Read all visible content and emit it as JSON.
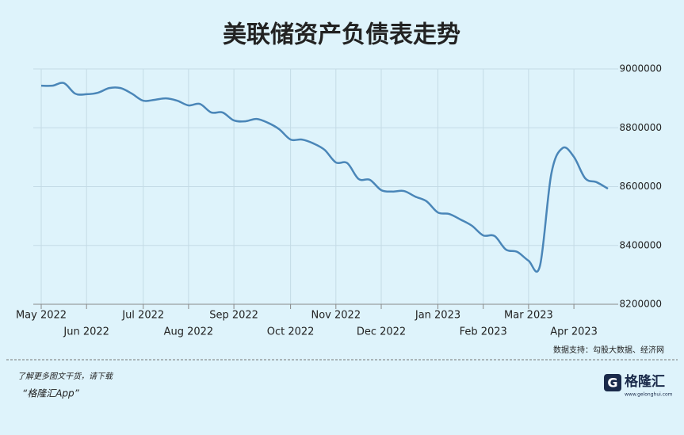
{
  "chart_data": {
    "type": "line",
    "title": "美联储资产负债表走势",
    "categories": [
      "May 2022",
      null,
      null,
      null,
      "Jun 2022",
      null,
      null,
      null,
      null,
      "Jul 2022",
      null,
      null,
      null,
      "Aug 2022",
      null,
      null,
      null,
      "Sep 2022",
      null,
      null,
      null,
      null,
      "Oct 2022",
      null,
      null,
      null,
      "Nov 2022",
      null,
      null,
      null,
      "Dec 2022",
      null,
      null,
      null,
      null,
      "Jan 2023",
      null,
      null,
      null,
      "Feb 2023",
      null,
      null,
      null,
      "Mar 2023",
      null,
      null,
      null,
      "Apr 2023",
      null,
      null,
      null
    ],
    "values": [
      8943000,
      8943000,
      8952000,
      8916000,
      8914000,
      8919000,
      8935000,
      8935000,
      8916000,
      8892000,
      8895000,
      8900000,
      8892000,
      8876000,
      8881000,
      8852000,
      8852000,
      8825000,
      8822000,
      8830000,
      8817000,
      8795000,
      8760000,
      8760000,
      8747000,
      8725000,
      8682000,
      8680000,
      8626000,
      8623000,
      8588000,
      8583000,
      8585000,
      8566000,
      8550000,
      8512000,
      8507000,
      8488000,
      8467000,
      8434000,
      8432000,
      8386000,
      8378000,
      8348000,
      8330000,
      8642000,
      8731000,
      8701000,
      8628000,
      8615000,
      8593000
    ],
    "color": "#4a86b8",
    "ylim": [
      8200000,
      9000000
    ],
    "yticks": [
      8200000,
      8400000,
      8600000,
      8800000,
      9000000
    ],
    "grid": true,
    "source": "数据支持：勾股大数据、经济网",
    "footer_line1": "了解更多图文干货，请下载",
    "footer_line2": "“格隆汇App”",
    "logo": "格隆汇",
    "logo_url": "www.gelonghui.com"
  }
}
